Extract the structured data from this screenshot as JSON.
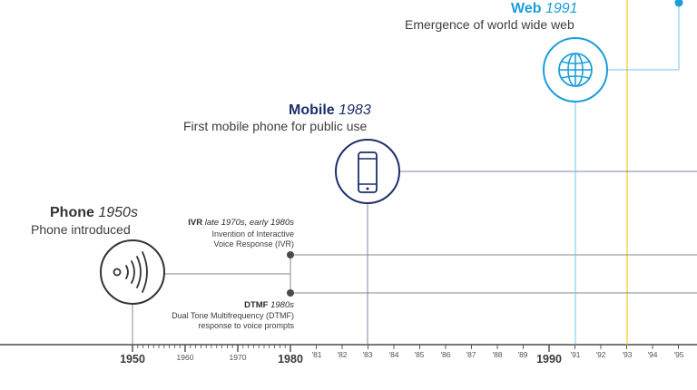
{
  "colors": {
    "phone": "#333333",
    "mobile": "#1d2f6b",
    "web": "#1a9fd9",
    "axis": "#4a4a4a",
    "connector_phone": "#8a8a8a",
    "connector_mobile": "#7d86a8",
    "connector_web": "#6ec7ec",
    "marker_line": "#f2d640"
  },
  "events": {
    "phone": {
      "name": "Phone",
      "year": "1950s",
      "description": "Phone introduced",
      "icon": "phone-signal-icon"
    },
    "mobile": {
      "name": "Mobile",
      "year": "1983",
      "description": "First mobile phone for public use",
      "icon": "mobile-phone-icon"
    },
    "web": {
      "name": "Web",
      "year": "1991",
      "description": "Emergence of world wide web",
      "icon": "globe-icon"
    },
    "ivr": {
      "name": "IVR",
      "year": "late 1970s, early 1980s",
      "description_line1": "Invention of Interactive",
      "description_line2": "Voice Response (IVR)"
    },
    "dtmf": {
      "name": "DTMF",
      "year": "1980s",
      "description_line1": "Dual Tone Multifrequency (DTMF)",
      "description_line2": "response to voice prompts"
    }
  },
  "axis": {
    "major_labels": [
      "1950",
      "1980",
      "1990"
    ],
    "minor_labels": [
      "1960",
      "1970"
    ],
    "year_labels": [
      "'81",
      "'82",
      "'83",
      "'84",
      "'85",
      "'86",
      "'87",
      "'88",
      "'89",
      "'91",
      "'92",
      "'93",
      "'94",
      "'95"
    ]
  }
}
